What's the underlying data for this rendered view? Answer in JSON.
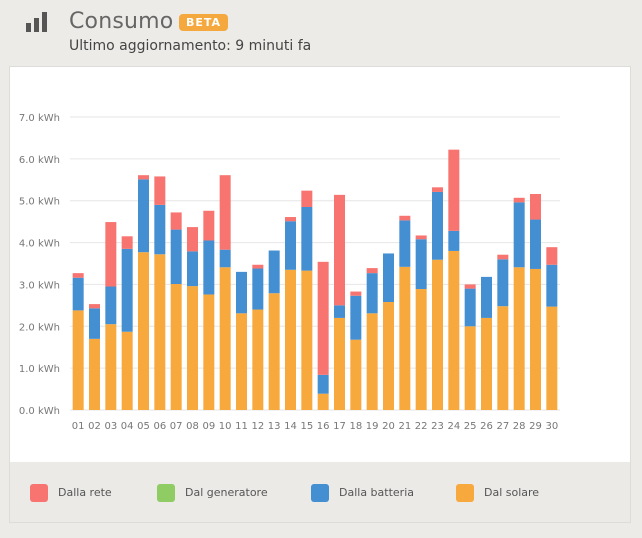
{
  "header": {
    "title": "Consumo",
    "badge": "BETA",
    "subtitle": "Ultimo aggiornamento: 9 minuti fa",
    "icon": "bar-chart-icon"
  },
  "colors": {
    "rete": "#f87470",
    "generatore": "#8fcc63",
    "batteria": "#438fd2",
    "solare": "#f7a93d",
    "grid": "#e6e6e6",
    "axis_text": "#777777"
  },
  "legend": {
    "items": [
      {
        "key": "rete",
        "label": "Dalla rete"
      },
      {
        "key": "generatore",
        "label": "Dal generatore"
      },
      {
        "key": "batteria",
        "label": "Dalla batteria"
      },
      {
        "key": "solare",
        "label": "Dal solare"
      }
    ]
  },
  "chart_data": {
    "type": "bar",
    "stacked": true,
    "title": "",
    "xlabel": "",
    "ylabel": "",
    "ylim": [
      0,
      7
    ],
    "yticks": [
      0,
      1,
      2,
      3,
      4,
      5,
      6,
      7
    ],
    "ytick_labels": [
      "0.0 kWh",
      "1.0 kWh",
      "2.0 kWh",
      "3.0 kWh",
      "4.0 kWh",
      "5.0 kWh",
      "6.0 kWh",
      "7.0 kWh"
    ],
    "grid": true,
    "legend_position": "bottom",
    "categories": [
      "01",
      "02",
      "03",
      "04",
      "05",
      "06",
      "07",
      "08",
      "09",
      "10",
      "11",
      "12",
      "13",
      "14",
      "15",
      "16",
      "17",
      "18",
      "19",
      "20",
      "21",
      "22",
      "23",
      "24",
      "25",
      "26",
      "27",
      "28",
      "29",
      "30"
    ],
    "series": [
      {
        "name": "Dal solare",
        "key": "solare",
        "values": [
          2.38,
          1.7,
          2.05,
          1.87,
          3.77,
          3.72,
          3.01,
          2.96,
          2.76,
          3.41,
          2.31,
          2.4,
          2.79,
          3.35,
          3.33,
          0.39,
          2.2,
          1.68,
          2.31,
          2.58,
          3.42,
          2.89,
          3.59,
          3.8,
          2.0,
          2.2,
          2.48,
          3.41,
          3.37,
          2.47
        ]
      },
      {
        "name": "Dalla batteria",
        "key": "batteria",
        "values": [
          0.78,
          0.73,
          0.9,
          1.98,
          1.74,
          1.18,
          1.3,
          0.83,
          1.29,
          0.42,
          0.99,
          0.98,
          1.02,
          1.16,
          1.52,
          0.45,
          0.3,
          1.05,
          0.96,
          1.16,
          1.11,
          1.19,
          1.62,
          0.48,
          0.9,
          0.98,
          1.12,
          1.55,
          1.18,
          1.0
        ]
      },
      {
        "name": "Dal generatore",
        "key": "generatore",
        "values": [
          0,
          0,
          0,
          0,
          0,
          0,
          0,
          0,
          0,
          0,
          0,
          0,
          0,
          0,
          0,
          0,
          0,
          0,
          0,
          0,
          0,
          0,
          0,
          0,
          0,
          0,
          0,
          0,
          0,
          0
        ]
      },
      {
        "name": "Dalla rete",
        "key": "rete",
        "values": [
          0.11,
          0.1,
          1.54,
          0.3,
          0.1,
          0.68,
          0.41,
          0.58,
          0.71,
          1.78,
          0,
          0.09,
          0,
          0.1,
          0.39,
          2.7,
          2.64,
          0.1,
          0.12,
          0,
          0.11,
          0.09,
          0.11,
          1.94,
          0.1,
          0,
          0.11,
          0.11,
          0.61,
          0.42
        ]
      }
    ]
  }
}
